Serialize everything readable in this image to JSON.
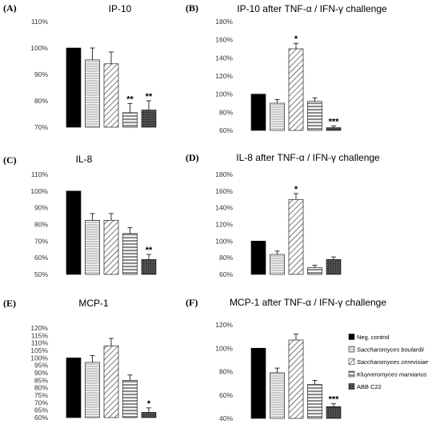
{
  "legend": [
    {
      "label": "Neg. control",
      "italic": false,
      "pattern": "black"
    },
    {
      "label": "Saccharomyces boulardii",
      "italic": true,
      "pattern": "hlines"
    },
    {
      "label": "Saccharomyces cerevisiae",
      "italic": true,
      "pattern": "diag"
    },
    {
      "label": "Kluyveromyces marxianus",
      "italic": true,
      "pattern": "hstripes"
    },
    {
      "label": "ABB C22",
      "italic": false,
      "pattern": "dots"
    }
  ],
  "chart_data": [
    {
      "panel": "(A)",
      "title": "IP-10",
      "type": "bar",
      "categories": [
        "Neg. control",
        "Saccharomyces boulardii",
        "Saccharomyces cerevisiae",
        "Kluyveromyces marxianus",
        "ABB C22"
      ],
      "values": [
        100,
        95.5,
        94,
        75.5,
        76.5
      ],
      "errors": [
        0,
        4.5,
        4.5,
        3.5,
        3.5
      ],
      "significance": [
        "",
        "",
        "",
        "**",
        "**"
      ],
      "ylim": [
        70,
        110
      ],
      "yticks": [
        70,
        80,
        90,
        100,
        110
      ],
      "ytick_labels": [
        "70%",
        "80%",
        "90%",
        "100%",
        "110%"
      ]
    },
    {
      "panel": "(B)",
      "title": "IP-10 after TNF-α / IFN-γ challenge",
      "type": "bar",
      "categories": [
        "Neg. control",
        "Saccharomyces boulardii",
        "Saccharomyces cerevisiae",
        "Kluyveromyces marxianus",
        "ABB C22"
      ],
      "values": [
        100,
        90,
        150,
        92,
        63
      ],
      "errors": [
        0,
        4,
        6,
        4,
        2
      ],
      "significance": [
        "",
        "",
        "*",
        "",
        "***"
      ],
      "ylim": [
        60,
        180
      ],
      "yticks": [
        60,
        80,
        100,
        120,
        140,
        160,
        180
      ],
      "ytick_labels": [
        "60%",
        "80%",
        "100%",
        "120%",
        "140%",
        "160%",
        "180%"
      ]
    },
    {
      "panel": "(C)",
      "title": "IL-8",
      "type": "bar",
      "categories": [
        "Neg. control",
        "Saccharomyces boulardii",
        "Saccharomyces cerevisiae",
        "Kluyveromyces marxianus",
        "ABB C22"
      ],
      "values": [
        100,
        82.5,
        82.5,
        74.5,
        59
      ],
      "errors": [
        0,
        4,
        4,
        3.5,
        3
      ],
      "significance": [
        "",
        "",
        "",
        "",
        "**"
      ],
      "ylim": [
        50,
        110
      ],
      "yticks": [
        50,
        60,
        70,
        80,
        90,
        100,
        110
      ],
      "ytick_labels": [
        "50%",
        "60%",
        "70%",
        "80%",
        "90%",
        "100%",
        "110%"
      ]
    },
    {
      "panel": "(D)",
      "title": "IL-8 after TNF-α / IFN-γ challenge",
      "type": "bar",
      "categories": [
        "Neg. control",
        "Saccharomyces boulardii",
        "Saccharomyces cerevisiae",
        "Kluyveromyces marxianus",
        "ABB C22"
      ],
      "values": [
        100,
        84,
        150,
        68,
        78
      ],
      "errors": [
        0,
        4,
        7,
        3,
        3
      ],
      "significance": [
        "",
        "",
        "*",
        "",
        ""
      ],
      "ylim": [
        60,
        180
      ],
      "yticks": [
        60,
        80,
        100,
        120,
        140,
        160,
        180
      ],
      "ytick_labels": [
        "60%",
        "80%",
        "100%",
        "120%",
        "140%",
        "160%",
        "180%"
      ]
    },
    {
      "panel": "(E)",
      "title": "MCP-1",
      "type": "bar",
      "categories": [
        "Neg. control",
        "Saccharomyces boulardii",
        "Saccharomyces cerevisiae",
        "Kluyveromyces marxianus",
        "ABB C22"
      ],
      "values": [
        100,
        97,
        108,
        85,
        63.5
      ],
      "errors": [
        0,
        4.5,
        5,
        3.5,
        3
      ],
      "significance": [
        "",
        "",
        "",
        "",
        "*"
      ],
      "ylim": [
        60,
        120
      ],
      "yticks": [
        60,
        65,
        70,
        75,
        80,
        85,
        90,
        95,
        100,
        105,
        110,
        115,
        120
      ],
      "ytick_labels": [
        "60%",
        "65%",
        "70%",
        "75%",
        "80%",
        "85%",
        "90%",
        "95%",
        "100%",
        "105%",
        "110%",
        "115%",
        "120%"
      ]
    },
    {
      "panel": "(F)",
      "title": "MCP-1 after TNF-α / IFN-γ challenge",
      "type": "bar",
      "categories": [
        "Neg. control",
        "Saccharomyces boulardii",
        "Saccharomyces cerevisiae",
        "Kluyveromyces marxianus",
        "ABB C22"
      ],
      "values": [
        100,
        79,
        107,
        69,
        50
      ],
      "errors": [
        0,
        4,
        5,
        3.5,
        2.5
      ],
      "significance": [
        "",
        "",
        "",
        "",
        "***"
      ],
      "ylim": [
        40,
        120
      ],
      "yticks": [
        40,
        60,
        80,
        100,
        120
      ],
      "ytick_labels": [
        "40%",
        "60%",
        "80%",
        "100%",
        "120%"
      ]
    }
  ]
}
